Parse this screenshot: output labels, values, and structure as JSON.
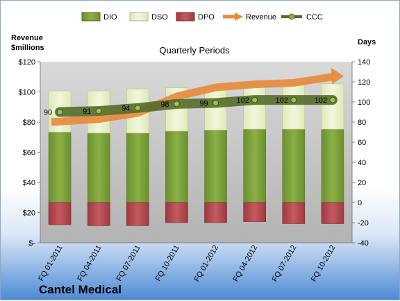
{
  "chart_data": {
    "type": "bar",
    "title": "Quarterly Periods",
    "company": "Cantel Medical",
    "categories": [
      "FQ 01-2011",
      "FQ 04-2011",
      "FQ 07-2011",
      "FQ 10-2011",
      "FQ 01-2012",
      "FQ 04-2012",
      "FQ 07-2012",
      "FQ 10-2012"
    ],
    "left_axis": {
      "label_line1": "Revenue",
      "label_line2": "$millions",
      "ylim": [
        0,
        120
      ],
      "ticks": [
        0,
        20,
        40,
        60,
        80,
        100,
        120
      ],
      "tick_labels": [
        "$-",
        "$20",
        "$40",
        "$60",
        "$80",
        "$100",
        "$120"
      ]
    },
    "right_axis": {
      "label": "Days",
      "ylim": [
        -40,
        140
      ],
      "ticks": [
        -40,
        -20,
        0,
        20,
        40,
        60,
        80,
        100,
        120,
        140
      ],
      "tick_labels": [
        "-40",
        "-20",
        "0",
        "20",
        "40",
        "60",
        "80",
        "100",
        "120",
        "140"
      ]
    },
    "series": [
      {
        "name": "DIO",
        "axis": "right",
        "kind": "stacked-bar",
        "values": [
          70,
          69,
          69,
          71,
          72,
          73,
          73,
          73
        ]
      },
      {
        "name": "DSO",
        "axis": "right",
        "kind": "stacked-bar",
        "values": [
          41,
          42,
          44,
          43,
          42,
          43,
          44,
          45
        ]
      },
      {
        "name": "DPO",
        "axis": "right",
        "kind": "negative-bar",
        "values": [
          -22,
          -23,
          -23,
          -20,
          -20,
          -19,
          -21,
          -21
        ]
      },
      {
        "name": "Revenue",
        "axis": "left",
        "kind": "arrow-line",
        "values": [
          80,
          82,
          86,
          97,
          103,
          105,
          106,
          110
        ]
      },
      {
        "name": "CCC",
        "axis": "right",
        "kind": "line",
        "values": [
          90,
          91,
          94,
          98,
          99,
          102,
          102,
          102
        ]
      }
    ],
    "legend": [
      "DIO",
      "DSO",
      "DPO",
      "Revenue",
      "CCC"
    ],
    "legend_position": "top",
    "grid": false,
    "colors": {
      "DIO": "#7a9f38",
      "DSO": "#e6f0c4",
      "DPO": "#b5484d",
      "Revenue": "#e88a3a",
      "CCC": "#556b2a",
      "plot_bg": "#bfbfbf"
    }
  }
}
